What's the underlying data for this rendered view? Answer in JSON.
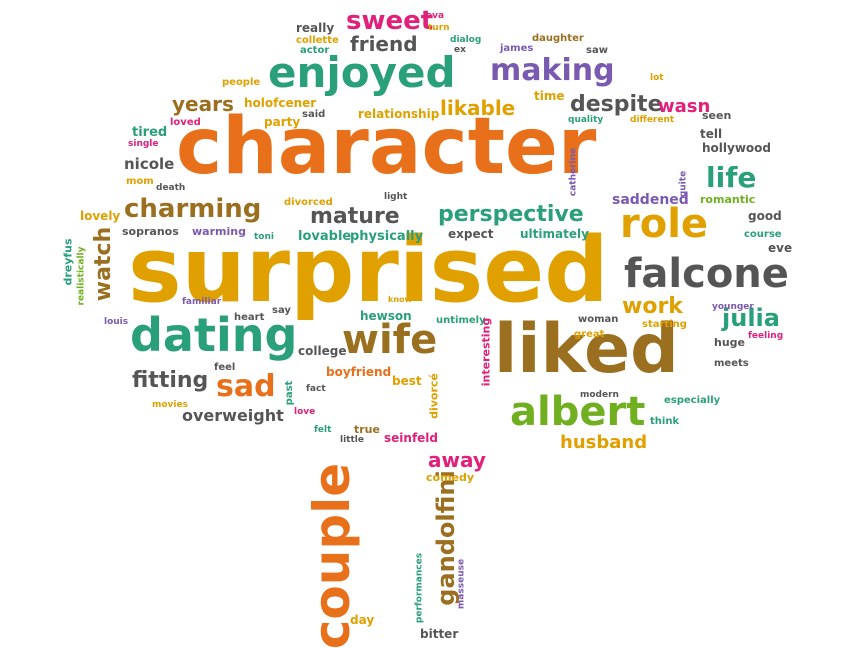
{
  "palette": {
    "orange": "#E8701A",
    "gold": "#E0A000",
    "brown": "#9A7020",
    "teal": "#2AA07A",
    "green": "#70B020",
    "magenta": "#E0207A",
    "purple": "#7A5AB0",
    "gray": "#555555"
  },
  "words": [
    {
      "text": "character",
      "color": "orange"
    },
    {
      "text": "surprised",
      "color": "gold"
    },
    {
      "text": "liked",
      "color": "brown"
    },
    {
      "text": "couple",
      "color": "orange"
    },
    {
      "text": "falcone",
      "color": "gray"
    },
    {
      "text": "enjoyed",
      "color": "teal"
    },
    {
      "text": "dating",
      "color": "teal"
    },
    {
      "text": "wife",
      "color": "brown"
    },
    {
      "text": "albert",
      "color": "green"
    },
    {
      "text": "role",
      "color": "gold"
    },
    {
      "text": "making",
      "color": "purple"
    },
    {
      "text": "charming",
      "color": "brown"
    },
    {
      "text": "life",
      "color": "teal"
    },
    {
      "text": "perspective",
      "color": "teal"
    },
    {
      "text": "mature",
      "color": "gray"
    },
    {
      "text": "sad",
      "color": "orange"
    },
    {
      "text": "julia",
      "color": "teal"
    },
    {
      "text": "work",
      "color": "gold"
    },
    {
      "text": "fitting",
      "color": "gray"
    },
    {
      "text": "gandolfini",
      "color": "brown"
    },
    {
      "text": "sweet",
      "color": "magenta"
    },
    {
      "text": "despite",
      "color": "gray"
    },
    {
      "text": "watch",
      "color": "brown"
    },
    {
      "text": "years",
      "color": "brown"
    },
    {
      "text": "friend",
      "color": "gray"
    },
    {
      "text": "likable",
      "color": "gold"
    },
    {
      "text": "wasn",
      "color": "magenta"
    },
    {
      "text": "away",
      "color": "magenta"
    },
    {
      "text": "husband",
      "color": "gold"
    },
    {
      "text": "overweight",
      "color": "gray"
    },
    {
      "text": "saddened",
      "color": "purple"
    },
    {
      "text": "nicole",
      "color": "gray"
    },
    {
      "text": "tired",
      "color": "teal"
    },
    {
      "text": "lovely",
      "color": "gold"
    },
    {
      "text": "sopranos",
      "color": "gray"
    },
    {
      "text": "warming",
      "color": "purple"
    },
    {
      "text": "lovable",
      "color": "teal"
    },
    {
      "text": "physically",
      "color": "teal"
    },
    {
      "text": "expect",
      "color": "gray"
    },
    {
      "text": "ultimately",
      "color": "teal"
    },
    {
      "text": "hollywood",
      "color": "gray"
    },
    {
      "text": "romantic",
      "color": "green"
    },
    {
      "text": "good",
      "color": "gray"
    },
    {
      "text": "eve",
      "color": "gray"
    },
    {
      "text": "course",
      "color": "teal"
    },
    {
      "text": "holofcener",
      "color": "gold"
    },
    {
      "text": "relationship",
      "color": "gold"
    },
    {
      "text": "party",
      "color": "gold"
    },
    {
      "text": "said",
      "color": "gray"
    },
    {
      "text": "loved",
      "color": "magenta"
    },
    {
      "text": "people",
      "color": "gold"
    },
    {
      "text": "really",
      "color": "gray"
    },
    {
      "text": "collette",
      "color": "gold"
    },
    {
      "text": "actor",
      "color": "teal"
    },
    {
      "text": "eva",
      "color": "magenta"
    },
    {
      "text": "turn",
      "color": "gold"
    },
    {
      "text": "dialog",
      "color": "teal"
    },
    {
      "text": "ex",
      "color": "gray"
    },
    {
      "text": "james",
      "color": "purple"
    },
    {
      "text": "daughter",
      "color": "brown"
    },
    {
      "text": "saw",
      "color": "gray"
    },
    {
      "text": "time",
      "color": "gold"
    },
    {
      "text": "lot",
      "color": "gold"
    },
    {
      "text": "quality",
      "color": "teal"
    },
    {
      "text": "different",
      "color": "gold"
    },
    {
      "text": "seen",
      "color": "gray"
    },
    {
      "text": "tell",
      "color": "gray"
    },
    {
      "text": "single",
      "color": "magenta"
    },
    {
      "text": "mom",
      "color": "gold"
    },
    {
      "text": "death",
      "color": "gray"
    },
    {
      "text": "divorced",
      "color": "gold"
    },
    {
      "text": "light",
      "color": "gray"
    },
    {
      "text": "catherine",
      "color": "purple"
    },
    {
      "text": "quite",
      "color": "purple"
    },
    {
      "text": "toni",
      "color": "teal"
    },
    {
      "text": "dreyfus",
      "color": "teal"
    },
    {
      "text": "realistically",
      "color": "green"
    },
    {
      "text": "louis",
      "color": "purple"
    },
    {
      "text": "familiar",
      "color": "purple"
    },
    {
      "text": "heart",
      "color": "gray"
    },
    {
      "text": "say",
      "color": "gray"
    },
    {
      "text": "know",
      "color": "gold"
    },
    {
      "text": "hewson",
      "color": "teal"
    },
    {
      "text": "untimely",
      "color": "teal"
    },
    {
      "text": "woman",
      "color": "gray"
    },
    {
      "text": "great",
      "color": "gold"
    },
    {
      "text": "starting",
      "color": "gold"
    },
    {
      "text": "huge",
      "color": "gray"
    },
    {
      "text": "feeling",
      "color": "magenta"
    },
    {
      "text": "younger",
      "color": "purple"
    },
    {
      "text": "meets",
      "color": "gray"
    },
    {
      "text": "college",
      "color": "gray"
    },
    {
      "text": "feel",
      "color": "gray"
    },
    {
      "text": "boyfriend",
      "color": "orange"
    },
    {
      "text": "best",
      "color": "gold"
    },
    {
      "text": "divorcé",
      "color": "gold"
    },
    {
      "text": "interesting",
      "color": "magenta"
    },
    {
      "text": "fact",
      "color": "gray"
    },
    {
      "text": "past",
      "color": "teal"
    },
    {
      "text": "movies",
      "color": "gold"
    },
    {
      "text": "love",
      "color": "magenta"
    },
    {
      "text": "modern",
      "color": "gray"
    },
    {
      "text": "especially",
      "color": "teal"
    },
    {
      "text": "think",
      "color": "teal"
    },
    {
      "text": "felt",
      "color": "teal"
    },
    {
      "text": "true",
      "color": "brown"
    },
    {
      "text": "little",
      "color": "gray"
    },
    {
      "text": "seinfeld",
      "color": "magenta"
    },
    {
      "text": "comedy",
      "color": "gold"
    },
    {
      "text": "performances",
      "color": "teal"
    },
    {
      "text": "masseuse",
      "color": "purple"
    },
    {
      "text": "day",
      "color": "gold"
    },
    {
      "text": "bitter",
      "color": "gray"
    }
  ]
}
